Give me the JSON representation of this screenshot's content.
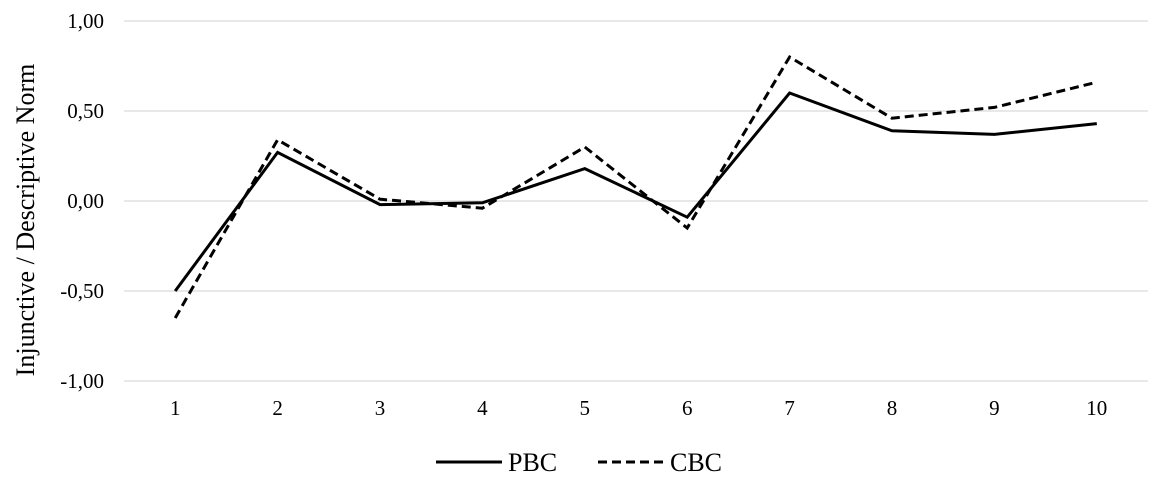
{
  "chart_data": {
    "type": "line",
    "title": "",
    "xlabel": "",
    "ylabel": "Injunctive / Descriptive Norm",
    "categories": [
      "1",
      "2",
      "3",
      "4",
      "5",
      "6",
      "7",
      "8",
      "9",
      "10"
    ],
    "y_ticks": [
      "1,00",
      "0,50",
      "0,00",
      "-0,50",
      "-1,00"
    ],
    "y_tick_values": [
      1.0,
      0.5,
      0.0,
      -0.5,
      -1.0
    ],
    "ylim": [
      -1.0,
      1.0
    ],
    "grid": "horizontal",
    "legend_position": "bottom",
    "series": [
      {
        "name": "PBC",
        "style": "solid",
        "color": "#000000",
        "values": [
          -0.5,
          0.27,
          -0.02,
          -0.01,
          0.18,
          -0.09,
          0.6,
          0.39,
          0.37,
          0.43
        ]
      },
      {
        "name": "CBC",
        "style": "dashed",
        "color": "#000000",
        "values": [
          -0.65,
          0.34,
          0.01,
          -0.04,
          0.3,
          -0.15,
          0.8,
          0.46,
          0.52,
          0.66
        ]
      }
    ],
    "gridline_color": "#d9d9d9"
  }
}
